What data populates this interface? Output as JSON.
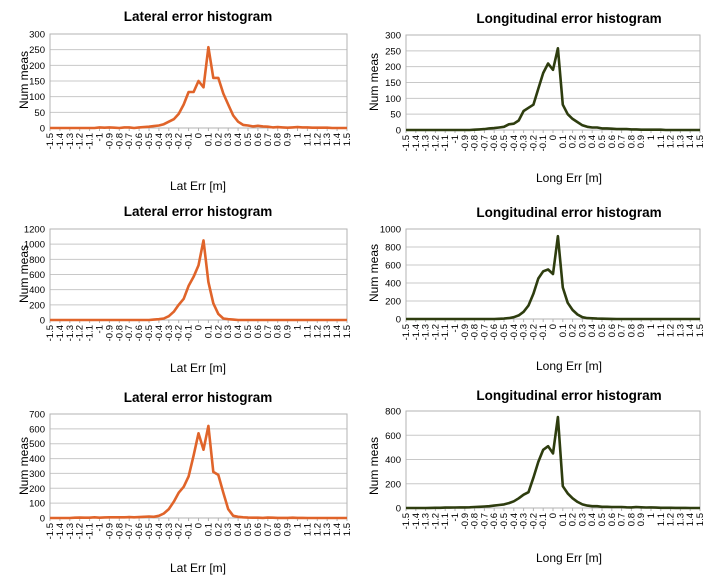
{
  "chart_data": [
    {
      "type": "line",
      "title": "Lateral error histogram",
      "xlabel": "Lat Err [m]",
      "ylabel": "Num meas",
      "color": "#e0642a",
      "ylim": [
        0,
        300
      ],
      "yticks": [
        0,
        50,
        100,
        150,
        200,
        250,
        300
      ],
      "categories": [
        "-1.5",
        "-1.4",
        "-1.3",
        "-1.2",
        "-1.1",
        "-1",
        "-0.9",
        "-0.8",
        "-0.7",
        "-0.6",
        "-0.5",
        "-0.4",
        "-0.3",
        "-0.2",
        "-0.1",
        "0",
        "0.1",
        "0.2",
        "0.3",
        "0.4",
        "0.5",
        "0.6",
        "0.7",
        "0.8",
        "0.9",
        "1",
        "1.1",
        "1.2",
        "1.3",
        "1.4",
        "1.5"
      ],
      "x": [
        -1.5,
        -1.45,
        -1.4,
        -1.35,
        -1.3,
        -1.25,
        -1.2,
        -1.15,
        -1.1,
        -1.05,
        -1.0,
        -0.95,
        -0.9,
        -0.85,
        -0.8,
        -0.75,
        -0.7,
        -0.65,
        -0.6,
        -0.55,
        -0.5,
        -0.45,
        -0.4,
        -0.35,
        -0.3,
        -0.25,
        -0.2,
        -0.15,
        -0.1,
        -0.05,
        0.0,
        0.05,
        0.1,
        0.15,
        0.2,
        0.25,
        0.3,
        0.35,
        0.4,
        0.45,
        0.5,
        0.55,
        0.6,
        0.65,
        0.7,
        0.75,
        0.8,
        0.85,
        0.9,
        0.95,
        1.0,
        1.05,
        1.1,
        1.15,
        1.2,
        1.25,
        1.3,
        1.35,
        1.4,
        1.45,
        1.5
      ],
      "values": [
        0,
        0,
        0,
        0,
        0,
        0,
        0,
        0,
        0,
        0,
        2,
        1,
        2,
        1,
        0,
        2,
        2,
        0,
        2,
        3,
        4,
        6,
        8,
        12,
        20,
        28,
        45,
        75,
        115,
        115,
        150,
        130,
        258,
        160,
        160,
        110,
        75,
        40,
        20,
        10,
        8,
        5,
        7,
        5,
        4,
        2,
        3,
        2,
        1,
        2,
        3,
        2,
        2,
        1,
        1,
        1,
        1,
        0,
        0,
        0,
        0
      ]
    },
    {
      "type": "line",
      "title": "Longitudinal error histogram",
      "xlabel": "Long Err [m]",
      "ylabel": "Num meas",
      "color": "#2e3d0f",
      "ylim": [
        0,
        300
      ],
      "yticks": [
        0,
        50,
        100,
        150,
        200,
        250,
        300
      ],
      "categories": [
        "-1.5",
        "-1.4",
        "-1.3",
        "-1.2",
        "-1.1",
        "-1",
        "-0.9",
        "-0.8",
        "-0.7",
        "-0.6",
        "-0.5",
        "-0.4",
        "-0.3",
        "-0.2",
        "-0.1",
        "0",
        "0.1",
        "0.2",
        "0.3",
        "0.4",
        "0.5",
        "0.6",
        "0.7",
        "0.8",
        "0.9",
        "1",
        "1.1",
        "1.2",
        "1.3",
        "1.4",
        "1.5"
      ],
      "x": [
        -1.5,
        -1.45,
        -1.4,
        -1.35,
        -1.3,
        -1.25,
        -1.2,
        -1.15,
        -1.1,
        -1.05,
        -1.0,
        -0.95,
        -0.9,
        -0.85,
        -0.8,
        -0.75,
        -0.7,
        -0.65,
        -0.6,
        -0.55,
        -0.5,
        -0.45,
        -0.4,
        -0.35,
        -0.3,
        -0.25,
        -0.2,
        -0.15,
        -0.1,
        -0.05,
        0.0,
        0.05,
        0.1,
        0.15,
        0.2,
        0.25,
        0.3,
        0.35,
        0.4,
        0.45,
        0.5,
        0.55,
        0.6,
        0.65,
        0.7,
        0.75,
        0.8,
        0.85,
        0.9,
        0.95,
        1.0,
        1.05,
        1.1,
        1.15,
        1.2,
        1.25,
        1.3,
        1.35,
        1.4,
        1.45,
        1.5
      ],
      "values": [
        0,
        0,
        0,
        0,
        0,
        0,
        0,
        0,
        0,
        0,
        0,
        0,
        0,
        0,
        1,
        2,
        3,
        5,
        6,
        8,
        10,
        18,
        20,
        30,
        60,
        70,
        80,
        130,
        180,
        210,
        190,
        258,
        80,
        50,
        35,
        25,
        15,
        10,
        8,
        8,
        5,
        5,
        4,
        3,
        3,
        3,
        2,
        2,
        1,
        1,
        1,
        1,
        1,
        0,
        0,
        0,
        0,
        0,
        0,
        0,
        0
      ]
    },
    {
      "type": "line",
      "title": "Lateral error histogram",
      "xlabel": "Lat Err [m]",
      "ylabel": "Num meas",
      "color": "#e0642a",
      "ylim": [
        0,
        1200
      ],
      "yticks": [
        0,
        200,
        400,
        600,
        800,
        1000,
        1200
      ],
      "categories": [
        "-1.5",
        "-1.4",
        "-1.3",
        "-1.2",
        "-1.1",
        "-1",
        "-0.9",
        "-0.8",
        "-0.7",
        "-0.6",
        "-0.5",
        "-0.4",
        "-0.3",
        "-0.2",
        "-0.1",
        "0",
        "0.1",
        "0.2",
        "0.3",
        "0.4",
        "0.5",
        "0.6",
        "0.7",
        "0.8",
        "0.9",
        "1",
        "1.1",
        "1.2",
        "1.3",
        "1.4",
        "1.5"
      ],
      "x": [
        -1.5,
        -1.45,
        -1.4,
        -1.35,
        -1.3,
        -1.25,
        -1.2,
        -1.15,
        -1.1,
        -1.05,
        -1.0,
        -0.95,
        -0.9,
        -0.85,
        -0.8,
        -0.75,
        -0.7,
        -0.65,
        -0.6,
        -0.55,
        -0.5,
        -0.45,
        -0.4,
        -0.35,
        -0.3,
        -0.25,
        -0.2,
        -0.15,
        -0.1,
        -0.05,
        0.0,
        0.05,
        0.1,
        0.15,
        0.2,
        0.25,
        0.3,
        0.35,
        0.4,
        0.45,
        0.5,
        0.55,
        0.6,
        0.65,
        0.7,
        0.75,
        0.8,
        0.85,
        0.9,
        0.95,
        1.0,
        1.05,
        1.1,
        1.15,
        1.2,
        1.25,
        1.3,
        1.35,
        1.4,
        1.45,
        1.5
      ],
      "values": [
        0,
        0,
        0,
        0,
        0,
        0,
        0,
        0,
        0,
        0,
        0,
        0,
        0,
        0,
        0,
        0,
        0,
        0,
        0,
        0,
        0,
        5,
        10,
        20,
        50,
        110,
        200,
        280,
        450,
        570,
        720,
        1050,
        500,
        220,
        80,
        20,
        10,
        5,
        0,
        0,
        0,
        0,
        0,
        0,
        0,
        0,
        0,
        0,
        0,
        0,
        0,
        0,
        0,
        0,
        0,
        0,
        0,
        0,
        0,
        0,
        0
      ]
    },
    {
      "type": "line",
      "title": "Longitudinal error histogram",
      "xlabel": "Long Err [m]",
      "ylabel": "Num meas",
      "color": "#2e3d0f",
      "ylim": [
        0,
        1000
      ],
      "yticks": [
        0,
        200,
        400,
        600,
        800,
        1000
      ],
      "categories": [
        "-1.5",
        "-1.4",
        "-1.3",
        "-1.2",
        "-1.1",
        "-1",
        "-0.9",
        "-0.8",
        "-0.7",
        "-0.6",
        "-0.5",
        "-0.4",
        "-0.3",
        "-0.2",
        "-0.1",
        "0",
        "0.1",
        "0.2",
        "0.3",
        "0.4",
        "0.5",
        "0.6",
        "0.7",
        "0.8",
        "0.9",
        "1",
        "1.1",
        "1.2",
        "1.3",
        "1.4",
        "1.5"
      ],
      "x": [
        -1.5,
        -1.45,
        -1.4,
        -1.35,
        -1.3,
        -1.25,
        -1.2,
        -1.15,
        -1.1,
        -1.05,
        -1.0,
        -0.95,
        -0.9,
        -0.85,
        -0.8,
        -0.75,
        -0.7,
        -0.65,
        -0.6,
        -0.55,
        -0.5,
        -0.45,
        -0.4,
        -0.35,
        -0.3,
        -0.25,
        -0.2,
        -0.15,
        -0.1,
        -0.05,
        0.0,
        0.05,
        0.1,
        0.15,
        0.2,
        0.25,
        0.3,
        0.35,
        0.4,
        0.45,
        0.5,
        0.55,
        0.6,
        0.65,
        0.7,
        0.75,
        0.8,
        0.85,
        0.9,
        0.95,
        1.0,
        1.05,
        1.1,
        1.15,
        1.2,
        1.25,
        1.3,
        1.35,
        1.4,
        1.45,
        1.5
      ],
      "values": [
        0,
        0,
        0,
        0,
        0,
        0,
        0,
        0,
        0,
        0,
        0,
        0,
        0,
        0,
        0,
        0,
        0,
        0,
        0,
        2,
        5,
        10,
        20,
        40,
        80,
        150,
        280,
        450,
        530,
        550,
        500,
        920,
        350,
        180,
        100,
        50,
        20,
        10,
        8,
        5,
        3,
        2,
        1,
        0,
        0,
        0,
        0,
        0,
        0,
        0,
        0,
        0,
        0,
        0,
        0,
        0,
        0,
        0,
        0,
        0,
        0
      ]
    },
    {
      "type": "line",
      "title": "Lateral error histogram",
      "xlabel": "Lat Err [m]",
      "ylabel": "Num meas",
      "color": "#e0642a",
      "ylim": [
        0,
        700
      ],
      "yticks": [
        0,
        100,
        200,
        300,
        400,
        500,
        600,
        700
      ],
      "categories": [
        "-1.5",
        "-1.4",
        "-1.3",
        "-1.2",
        "-1.1",
        "-1",
        "-0.9",
        "-0.8",
        "-0.7",
        "-0.6",
        "-0.5",
        "-0.4",
        "-0.3",
        "-0.2",
        "-0.1",
        "0",
        "0.1",
        "0.2",
        "0.3",
        "0.4",
        "0.5",
        "0.6",
        "0.7",
        "0.8",
        "0.9",
        "1",
        "1.1",
        "1.2",
        "1.3",
        "1.4",
        "1.5"
      ],
      "x": [
        -1.5,
        -1.45,
        -1.4,
        -1.35,
        -1.3,
        -1.25,
        -1.2,
        -1.15,
        -1.1,
        -1.05,
        -1.0,
        -0.95,
        -0.9,
        -0.85,
        -0.8,
        -0.75,
        -0.7,
        -0.65,
        -0.6,
        -0.55,
        -0.5,
        -0.45,
        -0.4,
        -0.35,
        -0.3,
        -0.25,
        -0.2,
        -0.15,
        -0.1,
        -0.05,
        0.0,
        0.05,
        0.1,
        0.15,
        0.2,
        0.25,
        0.3,
        0.35,
        0.4,
        0.45,
        0.5,
        0.55,
        0.6,
        0.65,
        0.7,
        0.75,
        0.8,
        0.85,
        0.9,
        0.95,
        1.0,
        1.05,
        1.1,
        1.15,
        1.2,
        1.25,
        1.3,
        1.35,
        1.4,
        1.45,
        1.5
      ],
      "values": [
        0,
        0,
        0,
        0,
        0,
        2,
        3,
        2,
        2,
        5,
        2,
        4,
        5,
        5,
        5,
        5,
        6,
        5,
        6,
        8,
        10,
        8,
        15,
        30,
        60,
        110,
        170,
        210,
        280,
        420,
        570,
        460,
        620,
        310,
        290,
        170,
        60,
        15,
        8,
        5,
        3,
        2,
        2,
        1,
        3,
        2,
        1,
        1,
        1,
        2,
        1,
        1,
        0,
        0,
        0,
        0,
        0,
        0,
        0,
        0,
        0
      ]
    },
    {
      "type": "line",
      "title": "Longitudinal error histogram",
      "xlabel": "Long Err [m]",
      "ylabel": "Num meas",
      "color": "#2e3d0f",
      "ylim": [
        0,
        800
      ],
      "yticks": [
        0,
        200,
        400,
        600,
        800
      ],
      "categories": [
        "-1.5",
        "-1.4",
        "-1.3",
        "-1.2",
        "-1.1",
        "-1",
        "-0.9",
        "-0.8",
        "-0.7",
        "-0.6",
        "-0.5",
        "-0.4",
        "-0.3",
        "-0.2",
        "-0.1",
        "0",
        "0.1",
        "0.2",
        "0.3",
        "0.4",
        "0.5",
        "0.6",
        "0.7",
        "0.8",
        "0.9",
        "1",
        "1.1",
        "1.2",
        "1.3",
        "1.4",
        "1.5"
      ],
      "x": [
        -1.5,
        -1.45,
        -1.4,
        -1.35,
        -1.3,
        -1.25,
        -1.2,
        -1.15,
        -1.1,
        -1.05,
        -1.0,
        -0.95,
        -0.9,
        -0.85,
        -0.8,
        -0.75,
        -0.7,
        -0.65,
        -0.6,
        -0.55,
        -0.5,
        -0.45,
        -0.4,
        -0.35,
        -0.3,
        -0.25,
        -0.2,
        -0.15,
        -0.1,
        -0.05,
        0.0,
        0.05,
        0.1,
        0.15,
        0.2,
        0.25,
        0.3,
        0.35,
        0.4,
        0.45,
        0.5,
        0.55,
        0.6,
        0.65,
        0.7,
        0.75,
        0.8,
        0.85,
        0.9,
        0.95,
        1.0,
        1.05,
        1.1,
        1.15,
        1.2,
        1.25,
        1.3,
        1.35,
        1.4,
        1.45,
        1.5
      ],
      "values": [
        0,
        0,
        0,
        0,
        0,
        1,
        2,
        2,
        3,
        3,
        4,
        5,
        5,
        6,
        8,
        10,
        12,
        15,
        20,
        25,
        30,
        40,
        55,
        80,
        110,
        130,
        250,
        380,
        480,
        510,
        450,
        750,
        180,
        120,
        80,
        50,
        30,
        20,
        15,
        15,
        10,
        10,
        8,
        8,
        8,
        6,
        5,
        8,
        6,
        4,
        5,
        3,
        2,
        2,
        2,
        1,
        1,
        1,
        0,
        0,
        0
      ]
    }
  ]
}
